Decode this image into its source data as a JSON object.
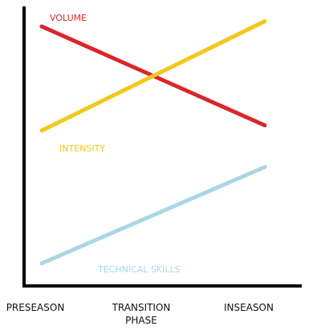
{
  "chart_data": {
    "type": "line",
    "title": "",
    "xlabel": "",
    "ylabel": "",
    "categories": [
      "PRESEASON",
      "TRANSITION PHASE",
      "INSEASON"
    ],
    "x_tick_lines": [
      [
        "PRESEASON"
      ],
      [
        "TRANSITION",
        "PHASE"
      ],
      [
        "INSEASON"
      ]
    ],
    "ylim": [
      0,
      100
    ],
    "grid": false,
    "legend": "none",
    "series": [
      {
        "name": "VOLUME",
        "color": "#d9262b",
        "start": {
          "x": 0,
          "y": 96
        },
        "end": {
          "x": 2,
          "y": 58
        }
      },
      {
        "name": "INTENSITY",
        "color": "#f2c81c",
        "start": {
          "x": 0,
          "y": 56
        },
        "end": {
          "x": 2,
          "y": 98
        }
      },
      {
        "name": "TECHNICAL SKILLS",
        "color": "#a9d7e4",
        "start": {
          "x": 0,
          "y": 5
        },
        "end": {
          "x": 2,
          "y": 42
        }
      }
    ]
  }
}
